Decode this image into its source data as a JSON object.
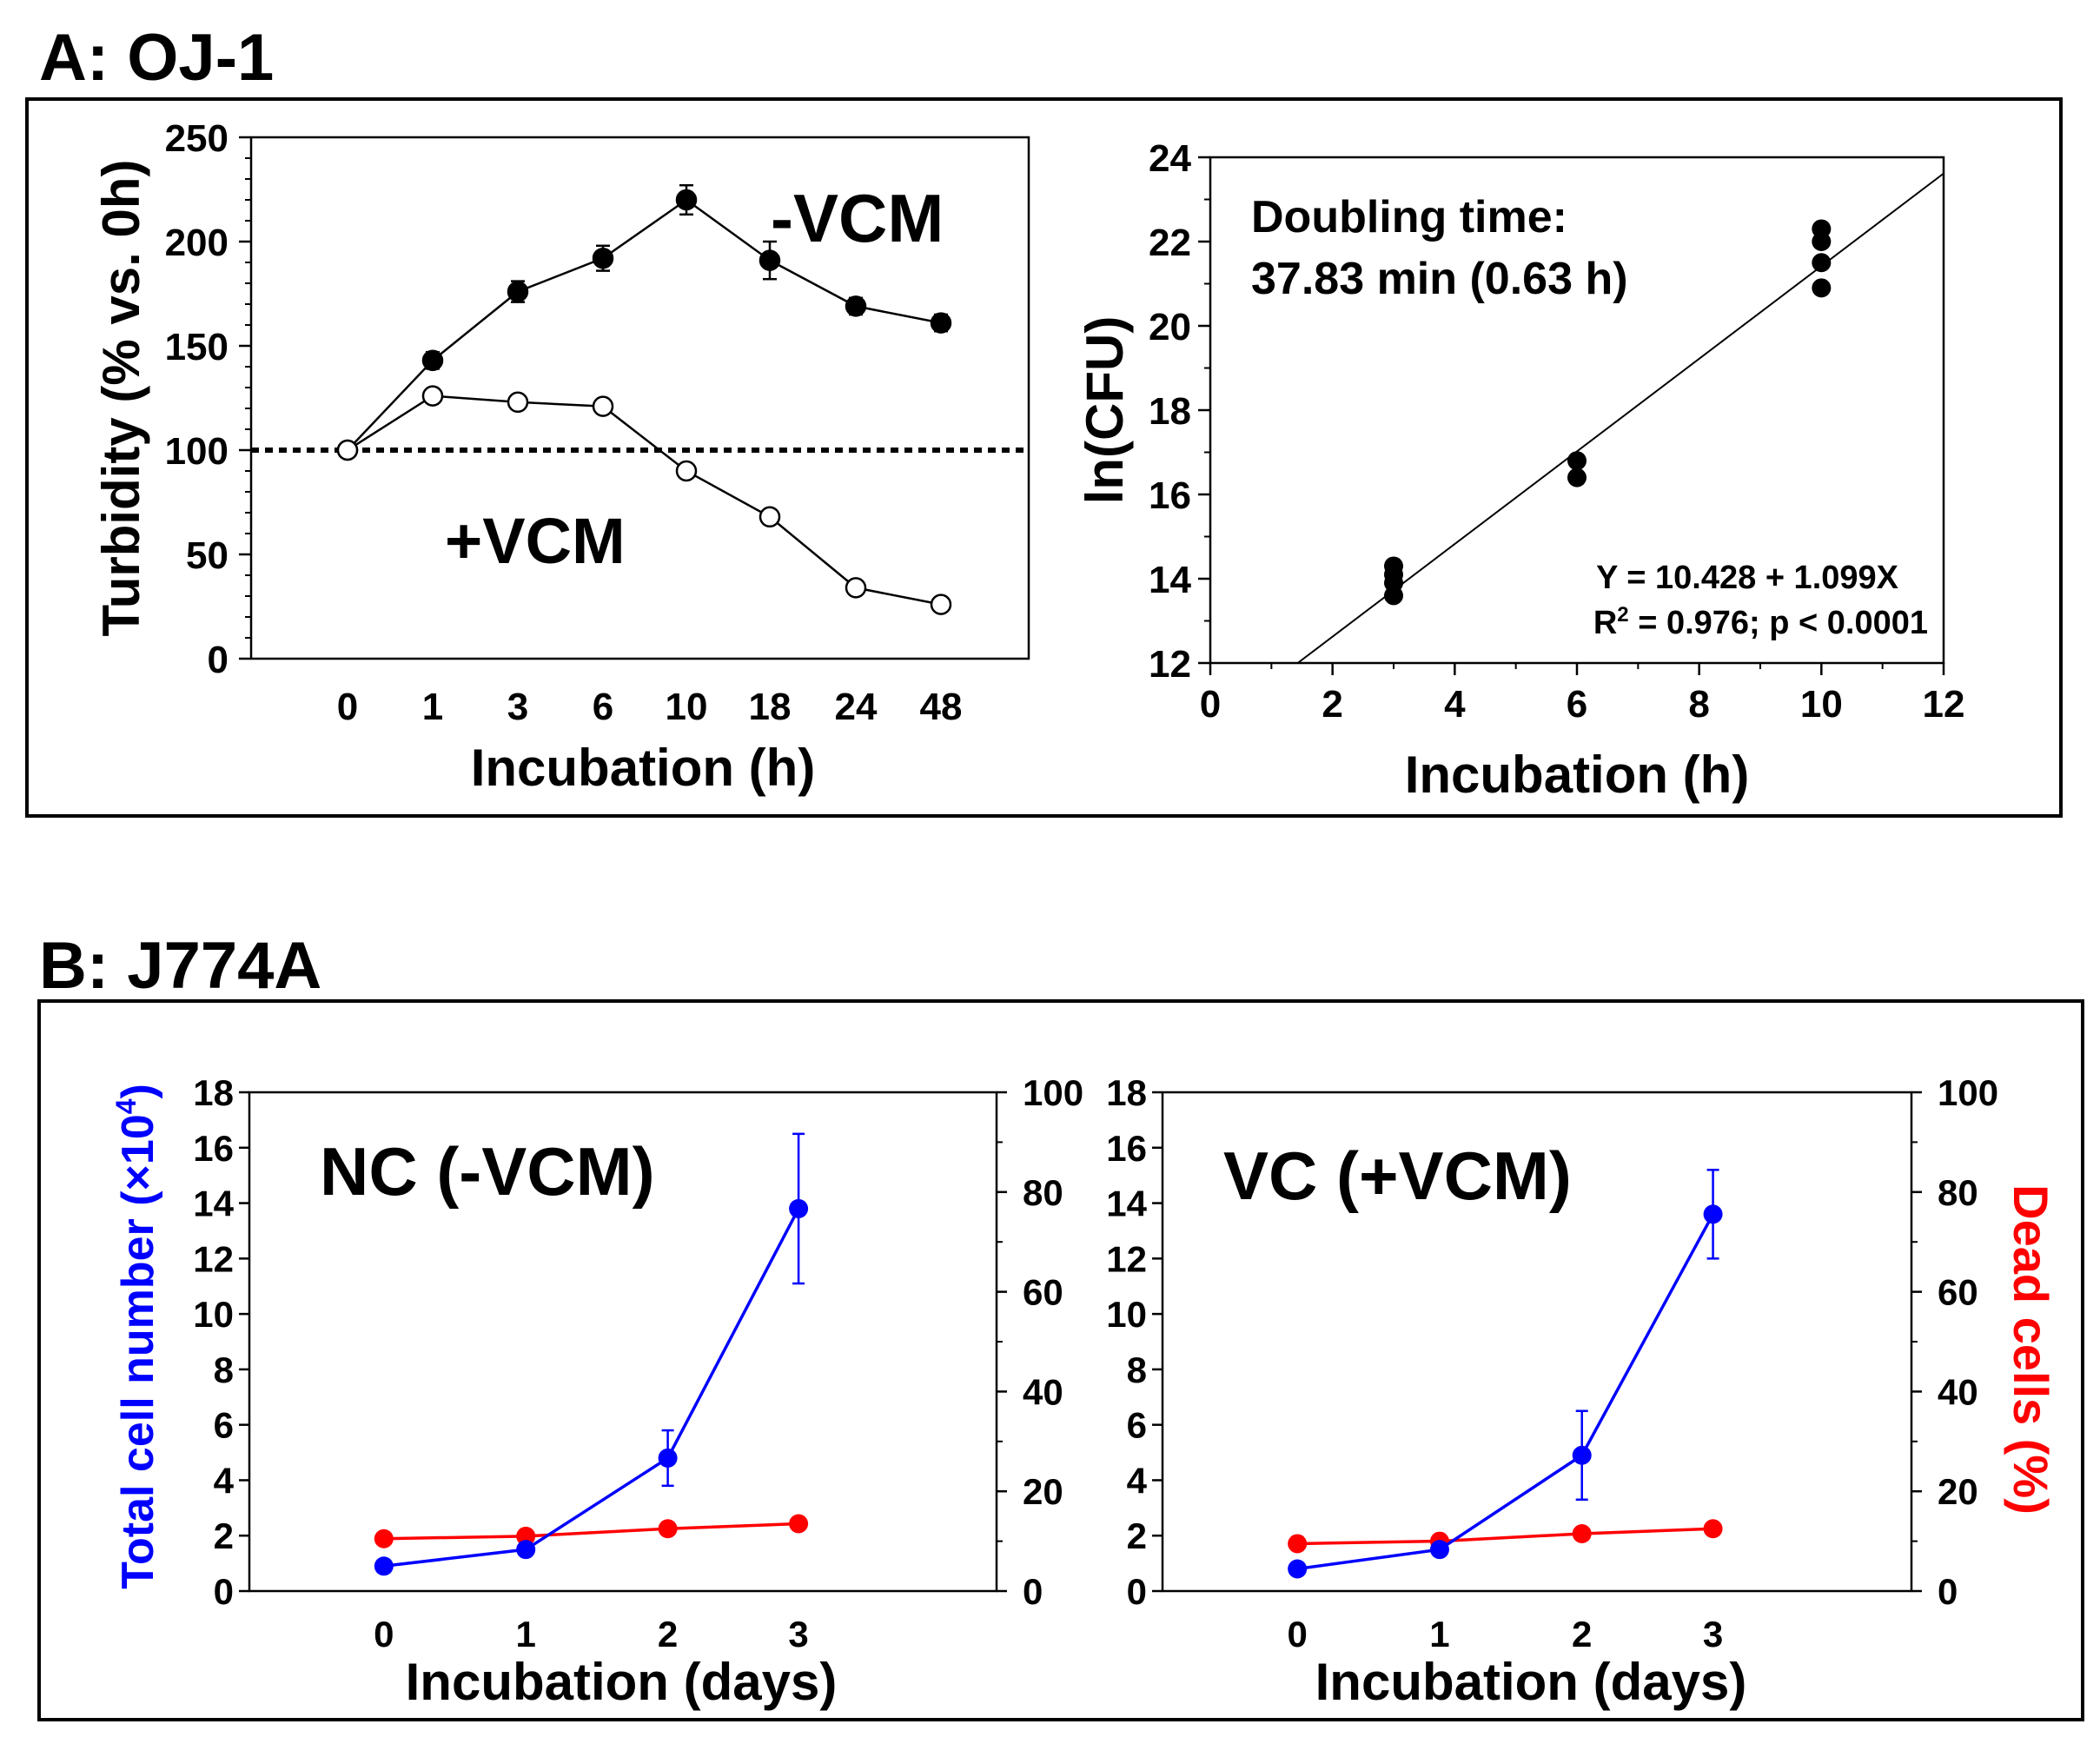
{
  "panel_a": {
    "title": "A: OJ-1",
    "charts": {
      "turbidity": {
        "type": "line",
        "xlabel": "Incubation (h)",
        "ylabel": "Turbidity (% vs. 0h)",
        "categories": [
          "0",
          "1",
          "3",
          "6",
          "10",
          "18",
          "24",
          "48"
        ],
        "yticks": [
          "0",
          "50",
          "100",
          "150",
          "200",
          "250"
        ],
        "ylim": [
          0,
          250
        ],
        "reference_line": 100,
        "series": [
          {
            "name": "-VCM",
            "label": "-VCM",
            "marker": "filled",
            "values": [
              100,
              143,
              176,
              192,
              220,
              191,
              169,
              161
            ],
            "errors": [
              3,
              4,
              5,
              6,
              7,
              9,
              4,
              4
            ]
          },
          {
            "name": "+VCM",
            "label": "+VCM",
            "marker": "open",
            "values": [
              100,
              126,
              123,
              121,
              90,
              68,
              34,
              26
            ],
            "errors": [
              0,
              0,
              0,
              0,
              0,
              0,
              0,
              0
            ]
          }
        ]
      },
      "cfu": {
        "type": "scatter",
        "xlabel": "Incubation (h)",
        "ylabel": "ln(CFU)",
        "xticks": [
          "0",
          "2",
          "4",
          "6",
          "8",
          "10",
          "12"
        ],
        "yticks": [
          "12",
          "14",
          "16",
          "18",
          "20",
          "22",
          "24"
        ],
        "xlim": [
          0,
          12
        ],
        "ylim": [
          12,
          24
        ],
        "annotation_line1": "Doubling time:",
        "annotation_line2": "37.83 min (0.63 h)",
        "equation": "Y = 10.428 + 1.099X",
        "r2_prefix": "R",
        "r2_sup": "2",
        "r2_rest": " = 0.976; p < 0.0001",
        "fit": {
          "intercept": 10.428,
          "slope": 1.099
        },
        "points": [
          {
            "x": 3,
            "y": 14.3
          },
          {
            "x": 3,
            "y": 14.1
          },
          {
            "x": 3,
            "y": 13.9
          },
          {
            "x": 3,
            "y": 13.6
          },
          {
            "x": 6,
            "y": 16.8
          },
          {
            "x": 6,
            "y": 16.4
          },
          {
            "x": 10,
            "y": 22.3
          },
          {
            "x": 10,
            "y": 22.0
          },
          {
            "x": 10,
            "y": 21.5
          },
          {
            "x": 10,
            "y": 20.9
          }
        ]
      }
    }
  },
  "panel_b": {
    "title": "B: J774A",
    "colors": {
      "total": "#0000ff",
      "dead": "#ff0000"
    },
    "shared": {
      "xlabel": "Incubation (days)",
      "categories": [
        "0",
        "1",
        "2",
        "3"
      ],
      "yleft_ticks": [
        "0",
        "2",
        "4",
        "6",
        "8",
        "10",
        "12",
        "14",
        "16",
        "18"
      ],
      "yleft_lim": [
        0,
        18
      ],
      "yright_ticks": [
        "0",
        "20",
        "40",
        "60",
        "80",
        "100"
      ],
      "yright_lim": [
        0,
        100
      ]
    },
    "left_ylabel_main": "Total cell number (×10",
    "left_ylabel_sup": "4",
    "left_ylabel_end": ")",
    "right_ylabel": "Dead cells (%)",
    "charts": {
      "nc": {
        "type": "line",
        "label": "NC (-VCM)",
        "total": {
          "name": "Total cell number",
          "values": [
            0.9,
            1.5,
            4.8,
            13.8
          ],
          "errors": [
            0,
            0,
            1.0,
            2.7
          ]
        },
        "dead": {
          "name": "Dead cells",
          "values": [
            10.5,
            11,
            12.5,
            13.5
          ]
        }
      },
      "vc": {
        "type": "line",
        "label": "VC (+VCM)",
        "total": {
          "name": "Total cell number",
          "values": [
            0.8,
            1.5,
            4.9,
            13.6
          ],
          "errors": [
            0,
            0,
            1.6,
            1.6
          ]
        },
        "dead": {
          "name": "Dead cells",
          "values": [
            9.5,
            10,
            11.5,
            12.5
          ]
        }
      }
    }
  }
}
